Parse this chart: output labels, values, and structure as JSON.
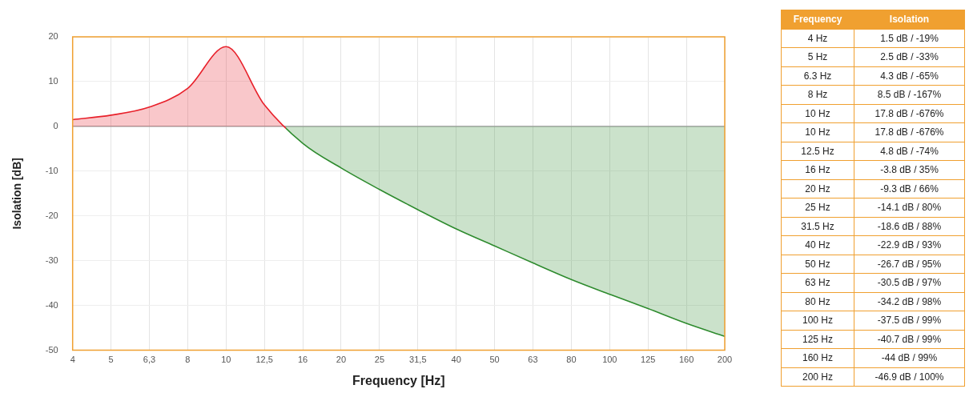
{
  "chart_data": [
    {
      "type": "area",
      "xlabel": "Frequency [Hz]",
      "ylabel": "Isolation [dB]",
      "categories": [
        "4",
        "5",
        "6,3",
        "8",
        "10",
        "12,5",
        "16",
        "20",
        "25",
        "31,5",
        "40",
        "50",
        "63",
        "80",
        "100",
        "125",
        "160",
        "200"
      ],
      "series": [
        {
          "values": [
            1.5,
            2.5,
            4.3,
            8.5,
            17.8,
            4.8,
            -3.8,
            -9.3,
            -14.1,
            -18.6,
            -22.9,
            -26.7,
            -30.5,
            -34.2,
            -37.5,
            -40.7,
            -44,
            -46.9
          ],
          "colors": [
            "#e8202a",
            "#e8202a",
            "#e8202a",
            "#e8202a",
            "#e8202a",
            "#e8202a",
            "#2e8b2e",
            "#2e8b2e",
            "#2e8b2e",
            "#2e8b2e",
            "#2e8b2e",
            "#2e8b2e",
            "#2e8b2e",
            "#2e8b2e",
            "#2e8b2e",
            "#2e8b2e",
            "#2e8b2e",
            "#2e8b2e"
          ]
        }
      ],
      "ylim": [
        -50,
        20
      ],
      "yticks": [
        -50,
        -40,
        -30,
        -20,
        -10,
        0,
        10,
        20
      ],
      "grid": true,
      "ref_lines": [
        {
          "axis": "y",
          "value": 0,
          "color": "#999999"
        }
      ]
    },
    {
      "type": "other",
      "xlabel": "Frequency",
      "ylabel": "Isolation",
      "categories": [
        "4 Hz",
        "5 Hz",
        "6.3 Hz",
        "8 Hz",
        "10 Hz",
        "10 Hz",
        "12.5 Hz",
        "16 Hz",
        "20 Hz",
        "25 Hz",
        "31.5 Hz",
        "40 Hz",
        "50 Hz",
        "63 Hz",
        "80 Hz",
        "100 Hz",
        "125 Hz",
        "160 Hz",
        "200 Hz"
      ],
      "value_labels": [
        "1.5 dB / -19%",
        "2.5 dB / -33%",
        "4.3 dB / -65%",
        "8.5 dB / -167%",
        "17.8 dB / -676%",
        "17.8 dB / -676%",
        "4.8 dB / -74%",
        "-3.8 dB / 35%",
        "-9.3 dB / 66%",
        "-14.1 dB / 80%",
        "-18.6 dB / 88%",
        "-22.9 dB / 93%",
        "-26.7 dB / 95%",
        "-30.5 dB / 97%",
        "-34.2 dB / 98%",
        "-37.5 dB / 99%",
        "-40.7 dB / 99%",
        "-44 dB / 99%",
        "-46.9 dB / 100%"
      ]
    }
  ]
}
